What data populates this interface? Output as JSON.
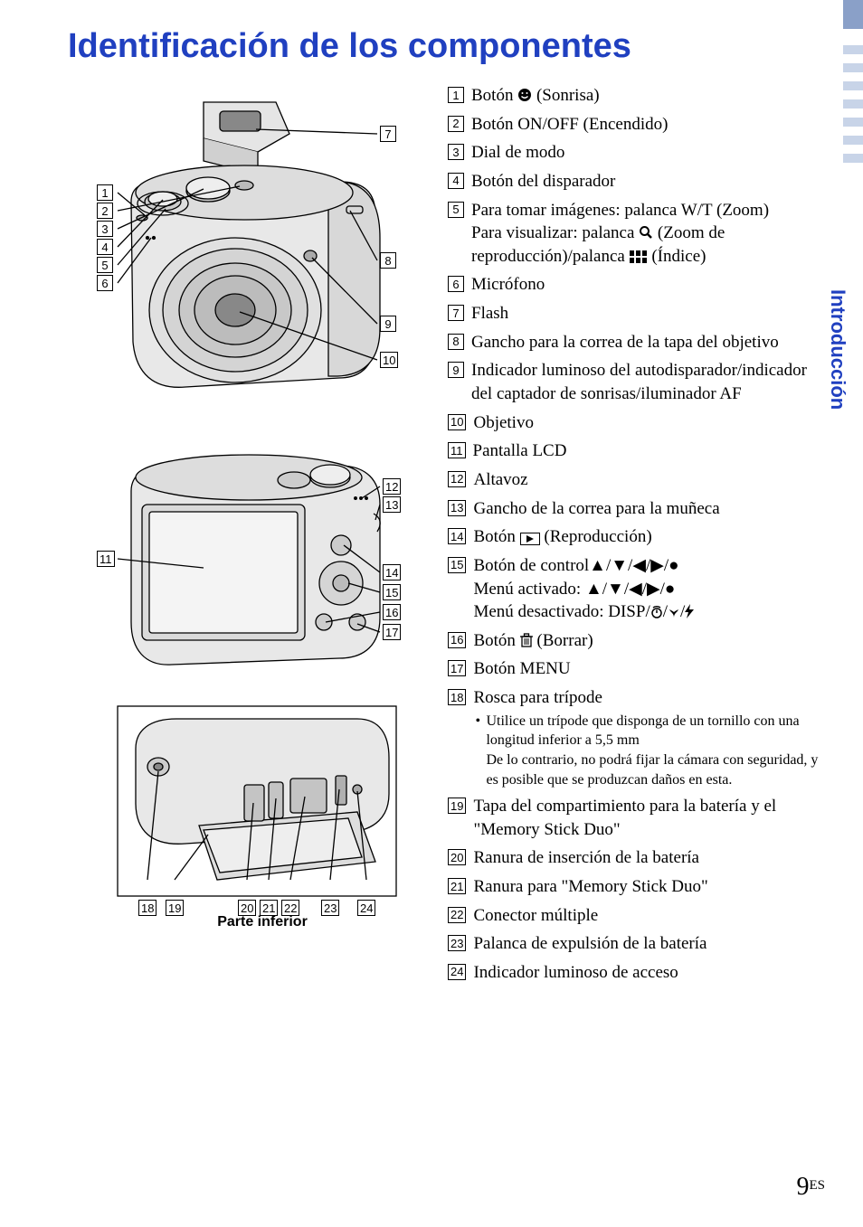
{
  "title": "Identificación de los componentes",
  "side_tab": "Introducción",
  "diagrams": {
    "caption": "Parte inferior",
    "top_callouts_left": [
      "1",
      "2",
      "3",
      "4",
      "5",
      "6"
    ],
    "top_callouts_right": [
      "7",
      "8",
      "9",
      "10"
    ],
    "mid_callouts_left": [
      "11"
    ],
    "mid_callouts_right": [
      "12",
      "13",
      "14",
      "15",
      "16",
      "17"
    ],
    "bottom_callouts": [
      "18",
      "19",
      "20",
      "21",
      "22",
      "23",
      "24"
    ]
  },
  "items": [
    {
      "n": "1",
      "text": "Botón ",
      "icon": "smile",
      "tail": " (Sonrisa)"
    },
    {
      "n": "2",
      "text": "Botón ON/OFF (Encendido)"
    },
    {
      "n": "3",
      "text": "Dial de modo"
    },
    {
      "n": "4",
      "text": "Botón del disparador"
    },
    {
      "n": "5",
      "text": "Para tomar imágenes: palanca W/T (Zoom)",
      "extra": "Para visualizar: palanca ",
      "icon": "magnify",
      "tail2": " (Zoom de reproducción)/palanca ",
      "icon2": "index",
      "tail3": " (Índice)"
    },
    {
      "n": "6",
      "text": "Micrófono"
    },
    {
      "n": "7",
      "text": "Flash"
    },
    {
      "n": "8",
      "text": "Gancho para la correa de la tapa del objetivo"
    },
    {
      "n": "9",
      "text": "Indicador luminoso del autodisparador/indicador del captador de sonrisas/iluminador AF"
    },
    {
      "n": "10",
      "text": "Objetivo"
    },
    {
      "n": "11",
      "text": "Pantalla LCD"
    },
    {
      "n": "12",
      "text": "Altavoz"
    },
    {
      "n": "13",
      "text": "Gancho de la correa para la muñeca"
    },
    {
      "n": "14",
      "text": "Botón ",
      "icon": "play",
      "tail": " (Reproducción)"
    },
    {
      "n": "15",
      "text": "Botón de control",
      "extra": "Menú activado: ",
      "icon": "arrows",
      "tail2": "",
      "extra2": "Menú desactivado: DISP/",
      "icon2": "timer-macro-flash"
    },
    {
      "n": "16",
      "text": "Botón ",
      "icon": "trash",
      "tail": " (Borrar)"
    },
    {
      "n": "17",
      "text": "Botón MENU"
    },
    {
      "n": "18",
      "text": "Rosca para trípode",
      "note": "Utilice un trípode que disponga de un tornillo con una longitud inferior a 5,5 mm",
      "note2": "De lo contrario, no podrá fijar la cámara con seguridad, y es posible que se produzcan daños en esta."
    },
    {
      "n": "19",
      "text": "Tapa del compartimiento para la batería y el \"Memory Stick Duo\""
    },
    {
      "n": "20",
      "text": "Ranura de inserción de la batería"
    },
    {
      "n": "21",
      "text": "Ranura para \"Memory Stick Duo\""
    },
    {
      "n": "22",
      "text": "Conector múltiple"
    },
    {
      "n": "23",
      "text": "Palanca de expulsión de la batería"
    },
    {
      "n": "24",
      "text": "Indicador luminoso de acceso"
    }
  ],
  "page_number": "9",
  "page_suffix": "ES",
  "colors": {
    "accent": "#2040c0",
    "text": "#000000",
    "side_bar_dark": "#8aa0c8",
    "side_bar_light": "#c8d4e8"
  }
}
